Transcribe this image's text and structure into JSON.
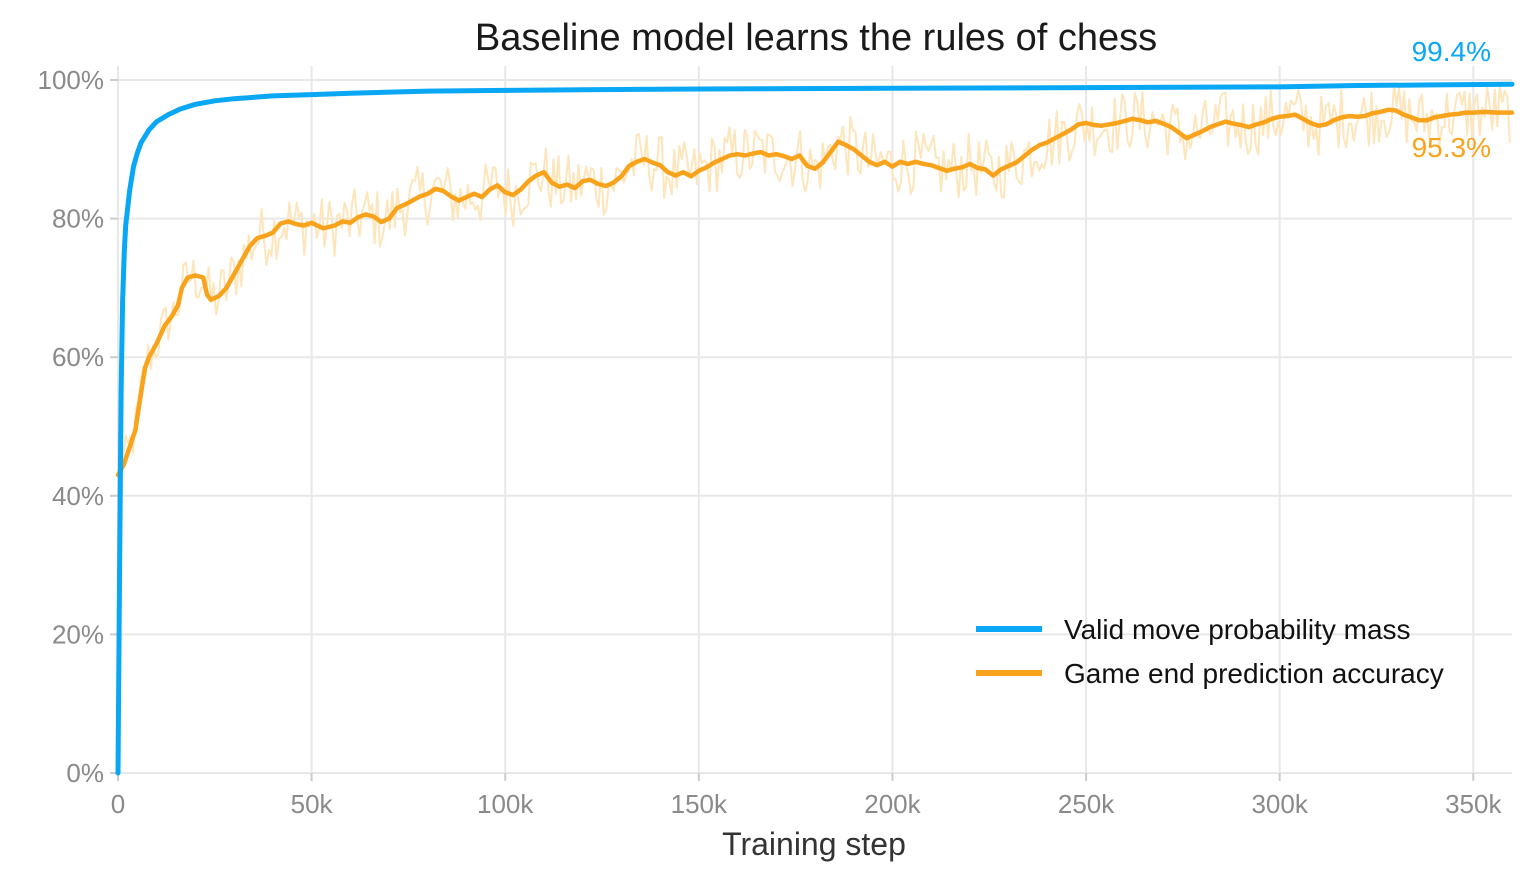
{
  "chart_data": {
    "type": "line",
    "title": "Baseline model learns the rules of chess",
    "xlabel": "Training step",
    "ylabel": "",
    "xlim": [
      0,
      360000
    ],
    "ylim": [
      0,
      100
    ],
    "x_ticks": [
      {
        "value": 0,
        "label": "0"
      },
      {
        "value": 50000,
        "label": "50k"
      },
      {
        "value": 100000,
        "label": "100k"
      },
      {
        "value": 150000,
        "label": "150k"
      },
      {
        "value": 200000,
        "label": "200k"
      },
      {
        "value": 250000,
        "label": "250k"
      },
      {
        "value": 300000,
        "label": "300k"
      },
      {
        "value": 350000,
        "label": "350k"
      }
    ],
    "y_ticks": [
      {
        "value": 0,
        "label": "0%"
      },
      {
        "value": 20,
        "label": "20%"
      },
      {
        "value": 40,
        "label": "40%"
      },
      {
        "value": 60,
        "label": "60%"
      },
      {
        "value": 80,
        "label": "80%"
      },
      {
        "value": 100,
        "label": "100%"
      }
    ],
    "grid": true,
    "legend_position": "bottom-right",
    "series": [
      {
        "name": "Valid move probability mass",
        "color": "#0aa7f5",
        "end_label": "99.4%",
        "points": [
          [
            0,
            0
          ],
          [
            400,
            28
          ],
          [
            800,
            55
          ],
          [
            1200,
            68
          ],
          [
            1600,
            75
          ],
          [
            2000,
            79
          ],
          [
            3000,
            84
          ],
          [
            4000,
            87.5
          ],
          [
            5000,
            89.5
          ],
          [
            6000,
            91
          ],
          [
            8000,
            92.8
          ],
          [
            10000,
            94
          ],
          [
            13000,
            95
          ],
          [
            16000,
            95.8
          ],
          [
            20000,
            96.5
          ],
          [
            25000,
            97
          ],
          [
            30000,
            97.3
          ],
          [
            40000,
            97.7
          ],
          [
            50000,
            97.9
          ],
          [
            60000,
            98.1
          ],
          [
            80000,
            98.4
          ],
          [
            100000,
            98.5
          ],
          [
            120000,
            98.6
          ],
          [
            150000,
            98.7
          ],
          [
            200000,
            98.8
          ],
          [
            250000,
            98.9
          ],
          [
            300000,
            99.0
          ],
          [
            320000,
            99.2
          ],
          [
            340000,
            99.3
          ],
          [
            360000,
            99.4
          ]
        ]
      },
      {
        "name": "Game end prediction accuracy",
        "color": "#f9a31c",
        "raw_color": "#fde5bc",
        "end_label": "95.3%",
        "points": [
          [
            0,
            43
          ],
          [
            1500,
            44.5
          ],
          [
            3000,
            47
          ],
          [
            4500,
            49.5
          ],
          [
            6000,
            55
          ],
          [
            7000,
            58.5
          ],
          [
            8000,
            60
          ],
          [
            10000,
            62
          ],
          [
            12000,
            64.5
          ],
          [
            14000,
            66
          ],
          [
            15500,
            67.5
          ],
          [
            16500,
            70
          ],
          [
            18000,
            71.5
          ],
          [
            20000,
            71.8
          ],
          [
            22000,
            71.5
          ],
          [
            23000,
            69
          ],
          [
            24000,
            68.3
          ],
          [
            26000,
            68.8
          ],
          [
            28000,
            70
          ],
          [
            30000,
            72
          ],
          [
            32000,
            74
          ],
          [
            34000,
            76
          ],
          [
            36000,
            77.2
          ],
          [
            38000,
            77.5
          ],
          [
            40000,
            78
          ],
          [
            42000,
            79.3
          ],
          [
            44000,
            79.6
          ],
          [
            46000,
            79.2
          ],
          [
            48000,
            79
          ],
          [
            50000,
            79.4
          ],
          [
            53000,
            78.6
          ],
          [
            56000,
            79
          ],
          [
            58000,
            79.6
          ],
          [
            60000,
            79.4
          ],
          [
            62000,
            80.2
          ],
          [
            64000,
            80.6
          ],
          [
            66000,
            80.3
          ],
          [
            68000,
            79.5
          ],
          [
            70000,
            80
          ],
          [
            72000,
            81.5
          ],
          [
            74000,
            82
          ],
          [
            76000,
            82.6
          ],
          [
            78000,
            83.2
          ],
          [
            80000,
            83.6
          ],
          [
            82000,
            84.3
          ],
          [
            84000,
            84
          ],
          [
            86000,
            83.2
          ],
          [
            88000,
            82.6
          ],
          [
            90000,
            83.1
          ],
          [
            92000,
            83.6
          ],
          [
            94000,
            83.1
          ],
          [
            96000,
            84.2
          ],
          [
            98000,
            84.8
          ],
          [
            100000,
            83.8
          ],
          [
            102000,
            83.4
          ],
          [
            104000,
            84.2
          ],
          [
            106000,
            85.4
          ],
          [
            108000,
            86.2
          ],
          [
            110000,
            86.7
          ],
          [
            112000,
            85.2
          ],
          [
            114000,
            84.6
          ],
          [
            116000,
            84.9
          ],
          [
            118000,
            84.4
          ],
          [
            120000,
            85.4
          ],
          [
            122000,
            85.6
          ],
          [
            124000,
            85
          ],
          [
            126000,
            84.7
          ],
          [
            128000,
            85.2
          ],
          [
            130000,
            86.1
          ],
          [
            132000,
            87.6
          ],
          [
            134000,
            88.2
          ],
          [
            136000,
            88.6
          ],
          [
            138000,
            88.1
          ],
          [
            140000,
            87.7
          ],
          [
            142000,
            86.7
          ],
          [
            144000,
            86.2
          ],
          [
            146000,
            86.7
          ],
          [
            148000,
            86.1
          ],
          [
            150000,
            86.9
          ],
          [
            152000,
            87.4
          ],
          [
            154000,
            88.1
          ],
          [
            156000,
            88.6
          ],
          [
            158000,
            89.1
          ],
          [
            160000,
            89.3
          ],
          [
            162000,
            89.1
          ],
          [
            164000,
            89.4
          ],
          [
            166000,
            89.6
          ],
          [
            168000,
            89.1
          ],
          [
            170000,
            89.3
          ],
          [
            172000,
            89
          ],
          [
            174000,
            88.6
          ],
          [
            176000,
            89.1
          ],
          [
            178000,
            87.6
          ],
          [
            180000,
            87.2
          ],
          [
            182000,
            88.1
          ],
          [
            184000,
            89.6
          ],
          [
            186000,
            91.1
          ],
          [
            188000,
            90.6
          ],
          [
            190000,
            90
          ],
          [
            192000,
            89.1
          ],
          [
            194000,
            88.2
          ],
          [
            196000,
            87.7
          ],
          [
            198000,
            88.2
          ],
          [
            200000,
            87.5
          ],
          [
            202000,
            88.2
          ],
          [
            204000,
            87.9
          ],
          [
            206000,
            88.2
          ],
          [
            208000,
            87.9
          ],
          [
            210000,
            87.7
          ],
          [
            212000,
            87.3
          ],
          [
            214000,
            86.9
          ],
          [
            216000,
            87.2
          ],
          [
            218000,
            87.4
          ],
          [
            220000,
            87.9
          ],
          [
            222000,
            87.3
          ],
          [
            224000,
            87.1
          ],
          [
            226000,
            86.2
          ],
          [
            228000,
            87.1
          ],
          [
            230000,
            87.6
          ],
          [
            232000,
            88.1
          ],
          [
            234000,
            89
          ],
          [
            236000,
            89.9
          ],
          [
            238000,
            90.6
          ],
          [
            240000,
            91
          ],
          [
            242000,
            91.6
          ],
          [
            244000,
            92.2
          ],
          [
            246000,
            92.8
          ],
          [
            248000,
            93.6
          ],
          [
            250000,
            93.8
          ],
          [
            252000,
            93.5
          ],
          [
            254000,
            93.4
          ],
          [
            256000,
            93.6
          ],
          [
            258000,
            93.8
          ],
          [
            260000,
            94.1
          ],
          [
            262000,
            94.4
          ],
          [
            264000,
            94.2
          ],
          [
            266000,
            93.9
          ],
          [
            268000,
            94.1
          ],
          [
            270000,
            93.7
          ],
          [
            272000,
            93.2
          ],
          [
            274000,
            92.4
          ],
          [
            276000,
            91.6
          ],
          [
            278000,
            92.1
          ],
          [
            280000,
            92.6
          ],
          [
            282000,
            93.2
          ],
          [
            284000,
            93.6
          ],
          [
            286000,
            94
          ],
          [
            288000,
            93.7
          ],
          [
            290000,
            93.5
          ],
          [
            292000,
            93.2
          ],
          [
            294000,
            93.6
          ],
          [
            296000,
            93.9
          ],
          [
            298000,
            94.4
          ],
          [
            300000,
            94.7
          ],
          [
            302000,
            94.8
          ],
          [
            304000,
            95
          ],
          [
            306000,
            94.4
          ],
          [
            308000,
            93.8
          ],
          [
            310000,
            93.4
          ],
          [
            312000,
            93.6
          ],
          [
            314000,
            94.2
          ],
          [
            316000,
            94.6
          ],
          [
            318000,
            94.8
          ],
          [
            320000,
            94.7
          ],
          [
            322000,
            94.8
          ],
          [
            324000,
            95.2
          ],
          [
            326000,
            95.4
          ],
          [
            328000,
            95.7
          ],
          [
            330000,
            95.6
          ],
          [
            332000,
            95
          ],
          [
            334000,
            94.6
          ],
          [
            336000,
            94.2
          ],
          [
            338000,
            94.2
          ],
          [
            340000,
            94.6
          ],
          [
            342000,
            94.8
          ],
          [
            344000,
            95
          ],
          [
            346000,
            95.1
          ],
          [
            348000,
            95.3
          ],
          [
            350000,
            95.3
          ],
          [
            353000,
            95.4
          ],
          [
            356000,
            95.3
          ],
          [
            360000,
            95.3
          ]
        ]
      }
    ]
  }
}
